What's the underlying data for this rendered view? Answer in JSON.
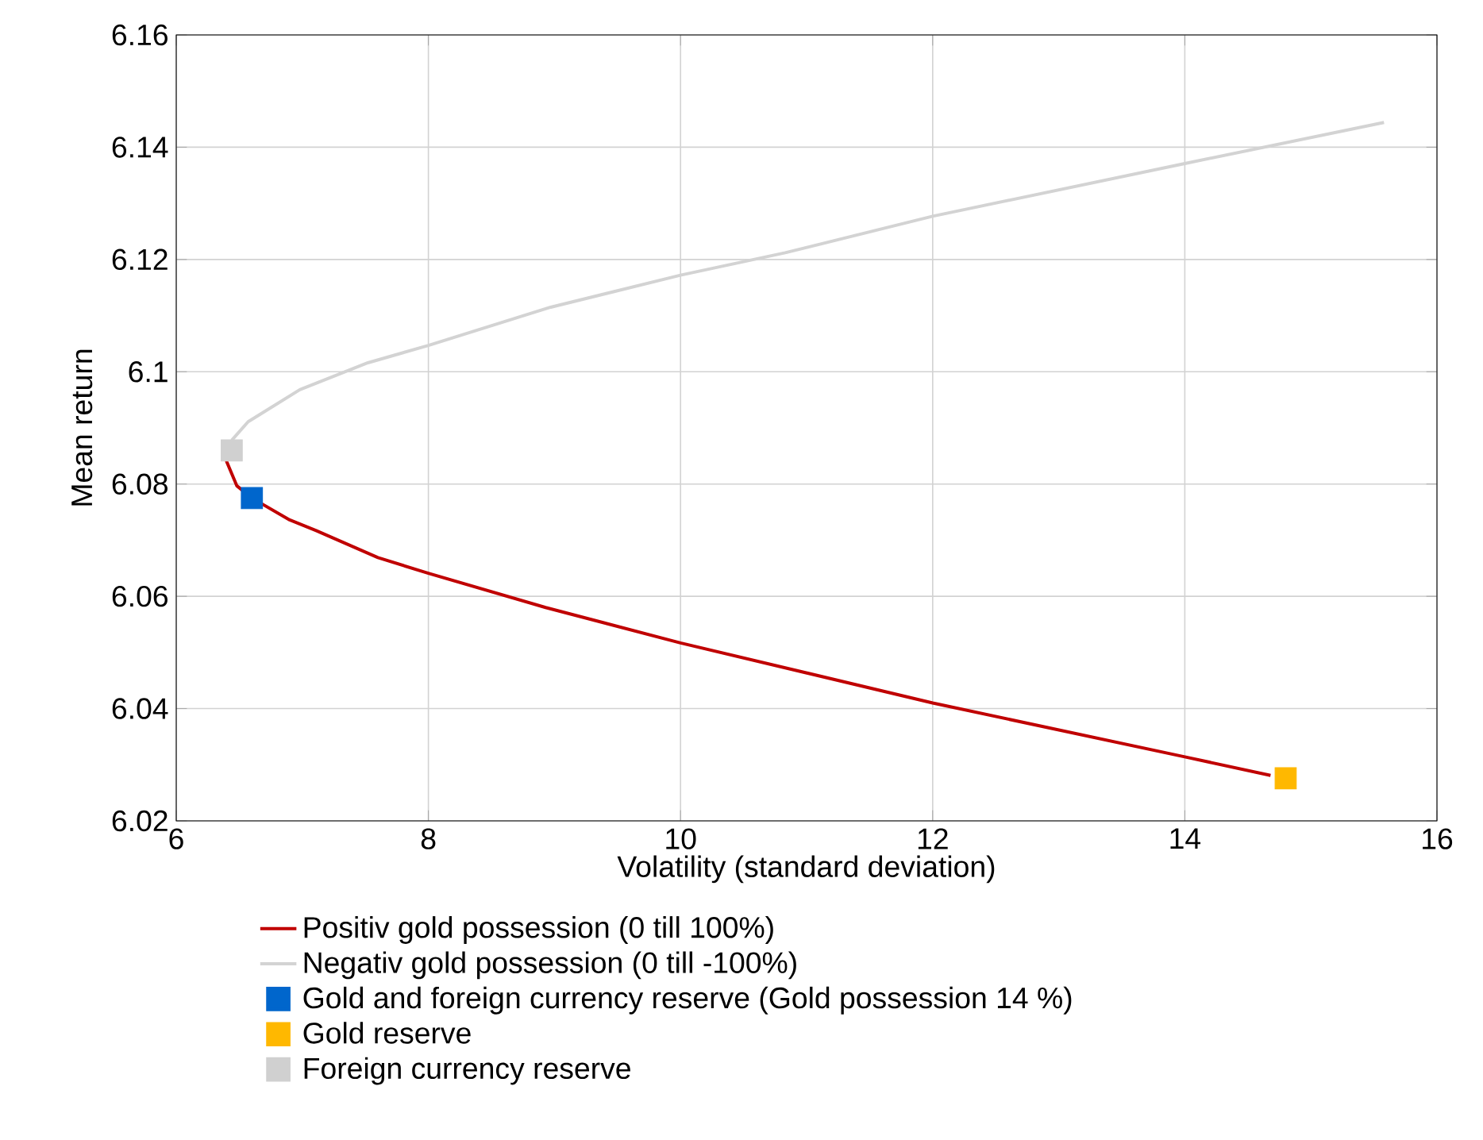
{
  "chart_data": {
    "type": "line",
    "xlabel": "Volatility (standard deviation)",
    "ylabel": "Mean return",
    "xlim": [
      6,
      16
    ],
    "ylim": [
      6.02,
      6.16
    ],
    "xticks": [
      6,
      8,
      10,
      12,
      14,
      16
    ],
    "yticks": [
      6.02,
      6.04,
      6.06,
      6.08,
      6.1,
      6.12,
      6.14,
      6.16
    ],
    "grid": true,
    "legend": "bottom",
    "series": [
      {
        "name": "Positiv gold possession (0 till 100%)",
        "marker": "none",
        "color": "#c00000",
        "x": [
          6.41,
          6.4,
          6.48,
          6.6,
          6.9,
          7.11,
          7.6,
          8.0,
          8.93,
          10.0,
          12.0,
          14.0,
          14.68
        ],
        "values": [
          6.0855,
          6.084,
          6.0797,
          6.0775,
          6.0736,
          6.0717,
          6.0669,
          6.0641,
          6.058,
          6.0517,
          6.041,
          6.0314,
          6.0281
        ]
      },
      {
        "name": "Negativ gold possession (0 till -100%)",
        "marker": "none",
        "color": "#d3d3d3",
        "x": [
          6.44,
          6.57,
          6.98,
          7.52,
          8.0,
          8.97,
          10.0,
          10.83,
          12.0,
          14.0,
          15.58
        ],
        "values": [
          6.0878,
          6.0911,
          6.0968,
          6.1016,
          6.1047,
          6.1115,
          6.1172,
          6.1212,
          6.1277,
          6.1371,
          6.1444
        ]
      },
      {
        "name": "Gold and foreign currency reserve (Gold possession 14 %)",
        "type": "scatter",
        "marker": "square",
        "color": "#0066cc",
        "x": [
          6.6
        ],
        "values": [
          6.0775
        ]
      },
      {
        "name": "Gold reserve",
        "type": "scatter",
        "marker": "square",
        "color": "#ffb800",
        "x": [
          14.8
        ],
        "values": [
          6.0276
        ]
      },
      {
        "name": "Foreign currency reserve",
        "type": "scatter",
        "marker": "square",
        "color": "#d0d0d0",
        "x": [
          6.44
        ],
        "values": [
          6.086
        ]
      }
    ]
  }
}
